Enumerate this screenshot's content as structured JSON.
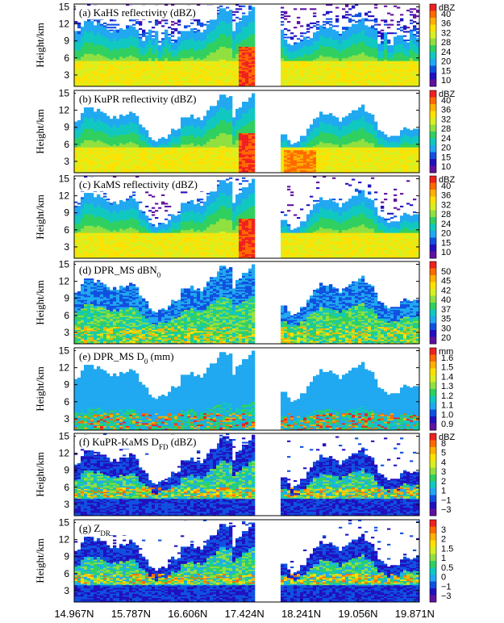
{
  "chart_data": {
    "type": "heatmap",
    "figure": "DPR along-track vertical cross sections",
    "x_tick_labels": [
      "14.967N",
      "15.787N",
      "16.606N",
      "17.424N",
      "18.241N",
      "19.056N",
      "19.871N"
    ],
    "y_axis_label": "Height/km",
    "y_ticks": [
      3,
      6,
      9,
      12,
      15
    ],
    "ylim": [
      1,
      15.5
    ],
    "panels": [
      {
        "id": "a",
        "title": "(a) KaHS reflectivity (dBZ)",
        "cb_unit": "dBZ",
        "cb_ticks": [
          "40",
          "36",
          "32",
          "28",
          "24",
          "20",
          "15",
          "10"
        ],
        "colors": [
          "#f02020",
          "#ff6a00",
          "#ffb000",
          "#ffe000",
          "#d8f020",
          "#90e040",
          "#30d060",
          "#10c8c0",
          "#20a8f0",
          "#1050e0",
          "#2010c0",
          "#6010a0"
        ]
      },
      {
        "id": "b",
        "title": "(b) KuPR reflectivity (dBZ)",
        "cb_unit": "dBZ",
        "cb_ticks": [
          "40",
          "36",
          "32",
          "28",
          "24",
          "20",
          "15",
          "10"
        ],
        "colors": [
          "#f02020",
          "#ff6a00",
          "#ffb000",
          "#ffe000",
          "#d8f020",
          "#90e040",
          "#30d060",
          "#10c8c0",
          "#20a8f0",
          "#1050e0",
          "#2010c0",
          "#6010a0"
        ]
      },
      {
        "id": "c",
        "title": "(c) KaMS reflectivity (dBZ)",
        "cb_unit": "dBZ",
        "cb_ticks": [
          "40",
          "36",
          "32",
          "28",
          "24",
          "20",
          "15",
          "10"
        ],
        "colors": [
          "#f02020",
          "#ff6a00",
          "#ffb000",
          "#ffe000",
          "#d8f020",
          "#90e040",
          "#30d060",
          "#10c8c0",
          "#20a8f0",
          "#1050e0",
          "#2010c0",
          "#6010a0"
        ]
      },
      {
        "id": "d",
        "title": "(d) DPR_MS dBN0",
        "cb_unit": "",
        "cb_ticks": [
          "50",
          "45",
          "42",
          "40",
          "37",
          "35",
          "30",
          "20"
        ],
        "colors": [
          "#f02020",
          "#ff6a00",
          "#ffb000",
          "#ffe000",
          "#d8f020",
          "#90e040",
          "#30d060",
          "#10c8c0",
          "#20a8f0",
          "#1050e0",
          "#2010c0",
          "#6010a0"
        ]
      },
      {
        "id": "e",
        "title": "(e) DPR_MS D0 (mm)",
        "cb_unit": "mm",
        "cb_ticks": [
          "1.6",
          "1.5",
          "1.4",
          "1.3",
          "1.2",
          "1.1",
          "1.0",
          "0.9"
        ],
        "colors": [
          "#f02020",
          "#ff6a00",
          "#ffb000",
          "#ffe000",
          "#d8f020",
          "#90e040",
          "#30d060",
          "#10c8c0",
          "#20a8f0",
          "#1050e0",
          "#2010c0",
          "#6010a0"
        ]
      },
      {
        "id": "f",
        "title": "(f) KuPR-KaMS DFD (dBZ)",
        "cb_unit": "dBZ",
        "cb_ticks": [
          "8",
          "5",
          "4",
          "3",
          "2",
          "1",
          "−1",
          "−3"
        ],
        "colors": [
          "#f02020",
          "#ff6a00",
          "#ffb000",
          "#ffe000",
          "#d8f020",
          "#90e040",
          "#30d060",
          "#10c8c0",
          "#20a8f0",
          "#1050e0",
          "#2010c0",
          "#6010a0"
        ]
      },
      {
        "id": "g",
        "title": "(g) ZDR",
        "cb_unit": "",
        "cb_ticks": [
          "3",
          "2",
          "1.5",
          "1",
          "0.5",
          "0",
          "−1",
          "−3"
        ],
        "colors": [
          "#f02020",
          "#ff6a00",
          "#ffb000",
          "#ffe000",
          "#d8f020",
          "#90e040",
          "#30d060",
          "#10c8c0",
          "#20a8f0",
          "#1050e0",
          "#2010c0",
          "#6010a0"
        ]
      }
    ],
    "cells_description": "Estimated gridded field: echo tops ~8-12 km, convective core near 17.3N reaching ~14.5 km, gap between ~17.45N and ~17.9N."
  },
  "panel_labels": {
    "a": "(a) KaHS reflectivity (dBZ)",
    "b": "(b) KuPR reflectivity (dBZ)",
    "c": "(c) KaMS reflectivity (dBZ)",
    "d_main": "(d) DPR_MS dBN",
    "d_sub": "0",
    "e_main": "(e) DPR_MS D",
    "e_sub": "0",
    "e_tail": " (mm)",
    "f_main": "(f) KuPR-KaMS D",
    "f_sub": "FD",
    "f_tail": " (dBZ)",
    "g_main": "(g) Z",
    "g_sub": "DR"
  }
}
